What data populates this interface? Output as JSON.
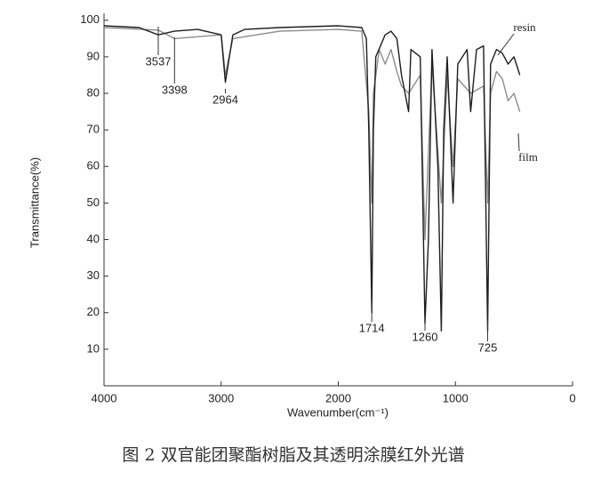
{
  "chart_data": {
    "type": "line",
    "caption": "图 2 双官能团聚酯树脂及其透明涂膜红外光谱",
    "x_label": "Wavenumber(cm⁻¹)",
    "y_label": "Transmittance(%)",
    "xlim": [
      4000,
      0
    ],
    "xticks": [
      4000,
      3000,
      2000,
      1000,
      0
    ],
    "ylim": [
      0,
      100
    ],
    "yticks": [
      10,
      20,
      30,
      40,
      50,
      60,
      70,
      80,
      90,
      100
    ],
    "peak_labels": [
      3537,
      3398,
      2964,
      1714,
      1260,
      725
    ],
    "series": [
      {
        "name": "resin",
        "color": "#1e1e1e",
        "x": [
          4000,
          3700,
          3537,
          3400,
          3200,
          3000,
          2964,
          2900,
          2800,
          2500,
          2000,
          1800,
          1760,
          1740,
          1714,
          1700,
          1680,
          1600,
          1550,
          1500,
          1460,
          1400,
          1380,
          1300,
          1260,
          1230,
          1200,
          1150,
          1120,
          1100,
          1070,
          1020,
          980,
          900,
          870,
          820,
          760,
          725,
          700,
          650,
          600,
          550,
          500,
          450
        ],
        "values": [
          98.5,
          98,
          96,
          97,
          97.5,
          96,
          83,
          96,
          97.5,
          98,
          98.5,
          98,
          95,
          70,
          20,
          70,
          90,
          96,
          97,
          95,
          85,
          75,
          92,
          90,
          17,
          40,
          92,
          60,
          15,
          70,
          90,
          50,
          88,
          92,
          75,
          92,
          93,
          15,
          88,
          92,
          91,
          88,
          90,
          85
        ]
      },
      {
        "name": "film",
        "color": "#8c8c8c",
        "x": [
          4000,
          3537,
          3398,
          3000,
          2964,
          2900,
          2500,
          2000,
          1800,
          1740,
          1714,
          1700,
          1650,
          1600,
          1550,
          1500,
          1460,
          1400,
          1300,
          1260,
          1200,
          1120,
          1070,
          1020,
          980,
          870,
          760,
          725,
          700,
          650,
          600,
          550,
          500,
          450
        ],
        "values": [
          98,
          97.3,
          95,
          96,
          85,
          95,
          97,
          97.5,
          97,
          75,
          50,
          80,
          92,
          88,
          92,
          86,
          82,
          80,
          85,
          40,
          88,
          50,
          85,
          60,
          84,
          80,
          82,
          50,
          80,
          86,
          84,
          78,
          80,
          75
        ]
      }
    ]
  }
}
